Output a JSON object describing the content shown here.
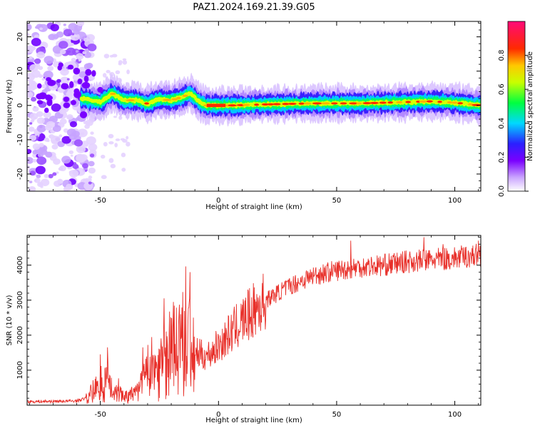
{
  "figure": {
    "title": "PAZ1.2024.169.21.39.G05"
  },
  "chart_data": [
    {
      "type": "heatmap",
      "xlabel": "Height of straight line (km)",
      "ylabel": "Frequency (Hz)",
      "xlim": [
        -81,
        111
      ],
      "ylim": [
        -25,
        24.5
      ],
      "x_ticks": [
        -50,
        0,
        50,
        100
      ],
      "y_ticks": [
        -20,
        -10,
        0,
        10,
        20
      ],
      "colorbar": {
        "label": "Normalized spectral amplitude",
        "range": [
          0.0,
          1.0
        ],
        "ticks": [
          0.0,
          0.2,
          0.4,
          0.6,
          0.8
        ]
      },
      "ridge": [
        {
          "x": -58,
          "y": 2.0
        },
        {
          "x": -50,
          "y": 1.0
        },
        {
          "x": -45,
          "y": 3.5
        },
        {
          "x": -40,
          "y": 1.5
        },
        {
          "x": -35,
          "y": 1.5
        },
        {
          "x": -30,
          "y": 0.5
        },
        {
          "x": -25,
          "y": 1.8
        },
        {
          "x": -20,
          "y": 1.5
        },
        {
          "x": -15,
          "y": 2.5
        },
        {
          "x": -12,
          "y": 3.5
        },
        {
          "x": -8,
          "y": 1.0
        },
        {
          "x": -5,
          "y": 0.0
        },
        {
          "x": 0,
          "y": 0.0
        },
        {
          "x": 5,
          "y": 0.0
        },
        {
          "x": 20,
          "y": 0.3
        },
        {
          "x": 40,
          "y": 0.6
        },
        {
          "x": 60,
          "y": 0.6
        },
        {
          "x": 80,
          "y": 1.0
        },
        {
          "x": 90,
          "y": 1.2
        },
        {
          "x": 100,
          "y": 0.8
        },
        {
          "x": 111,
          "y": 0.0
        }
      ]
    },
    {
      "type": "line",
      "xlabel": "Height of straight line (km)",
      "ylabel": "SNR (10 * v/v)",
      "xlim": [
        -81,
        111
      ],
      "ylim": [
        0,
        4850
      ],
      "x_ticks": [
        -50,
        0,
        50,
        100
      ],
      "y_ticks": [
        1000,
        2000,
        3000,
        4000
      ],
      "color": "#e8302a",
      "envelope": [
        {
          "x": -81,
          "y": 100
        },
        {
          "x": -60,
          "y": 120
        },
        {
          "x": -55,
          "y": 220
        },
        {
          "x": -52,
          "y": 500
        },
        {
          "x": -48,
          "y": 700
        },
        {
          "x": -45,
          "y": 500
        },
        {
          "x": -40,
          "y": 250
        },
        {
          "x": -35,
          "y": 300
        },
        {
          "x": -32,
          "y": 700
        },
        {
          "x": -25,
          "y": 1100
        },
        {
          "x": -20,
          "y": 1400
        },
        {
          "x": -15,
          "y": 1900
        },
        {
          "x": -10,
          "y": 1500
        },
        {
          "x": -5,
          "y": 1400
        },
        {
          "x": 0,
          "y": 1700
        },
        {
          "x": 10,
          "y": 2400
        },
        {
          "x": 20,
          "y": 3000
        },
        {
          "x": 30,
          "y": 3400
        },
        {
          "x": 40,
          "y": 3700
        },
        {
          "x": 50,
          "y": 3850
        },
        {
          "x": 60,
          "y": 3950
        },
        {
          "x": 70,
          "y": 4000
        },
        {
          "x": 80,
          "y": 4100
        },
        {
          "x": 90,
          "y": 4150
        },
        {
          "x": 100,
          "y": 4200
        },
        {
          "x": 111,
          "y": 4300
        }
      ],
      "spikes": [
        {
          "x": -50,
          "y": 1450
        },
        {
          "x": -47,
          "y": 1650
        },
        {
          "x": -32,
          "y": 1650
        },
        {
          "x": -23,
          "y": 3050
        },
        {
          "x": -19,
          "y": 2950
        },
        {
          "x": -16,
          "y": 2600
        },
        {
          "x": -12,
          "y": 3800
        },
        {
          "x": 56,
          "y": 4700
        },
        {
          "x": 87,
          "y": 4800
        },
        {
          "x": 95,
          "y": 4600
        },
        {
          "x": 110,
          "y": 4700
        }
      ]
    }
  ]
}
